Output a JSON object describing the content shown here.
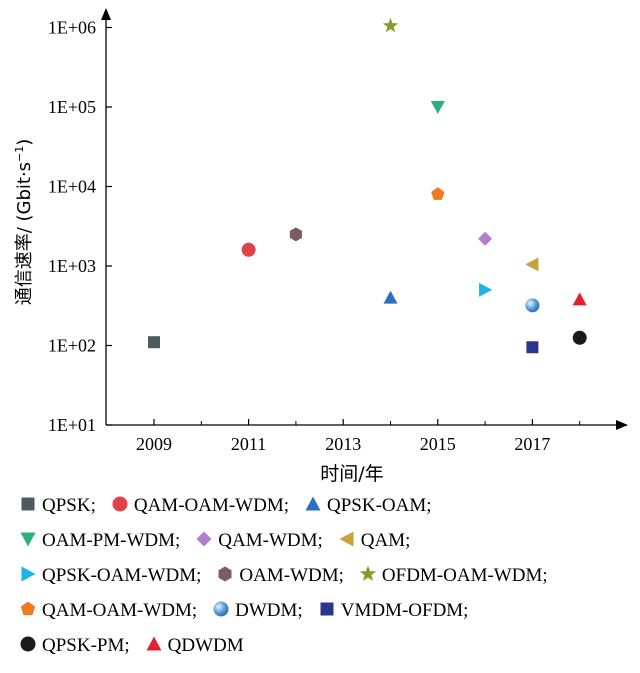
{
  "chart_data": {
    "type": "scatter",
    "xlabel": "时间/年",
    "ylabel": "通信速率/ (Gbit·s",
    "ylabel_sup": "−1",
    "ylabel_close": ")",
    "y_scale": "log",
    "xlim": [
      2008.0,
      2019.0
    ],
    "ylim": [
      10,
      1000000
    ],
    "x_ticks": [
      2009,
      2011,
      2013,
      2015,
      2017
    ],
    "x_tick_labels": [
      "2009",
      "2011",
      "2013",
      "2015",
      "2017"
    ],
    "y_ticks": [
      10,
      100,
      1000,
      10000,
      100000,
      1000000
    ],
    "y_tick_labels": [
      "1E+01",
      "1E+02",
      "1E+03",
      "1E+04",
      "1E+05",
      "1E+06"
    ],
    "grid": false,
    "legend_position": "bottom",
    "series": [
      {
        "name": "QPSK;",
        "marker": "square",
        "color": "#4d5a5f",
        "x": 2009,
        "y": 110
      },
      {
        "name": "QAM-OAM-WDM;",
        "marker": "circle",
        "color": "#e2404b",
        "x": 2011,
        "y": 1600
      },
      {
        "name": "QPSK-OAM;",
        "marker": "triangle-up",
        "color": "#2f6ec4",
        "x": 2014,
        "y": 400
      },
      {
        "name": "OAM-PM-WDM;",
        "marker": "triangle-down",
        "color": "#2bb07d",
        "x": 2015,
        "y": 100000
      },
      {
        "name": "QAM-WDM;",
        "marker": "diamond",
        "color": "#b07fc9",
        "x": 2016,
        "y": 2200
      },
      {
        "name": "QAM;",
        "marker": "triangle-left",
        "color": "#c8a23a",
        "x": 2017,
        "y": 1050
      },
      {
        "name": "QPSK-OAM-WDM;",
        "marker": "triangle-right",
        "color": "#1ab4e6",
        "x": 2016,
        "y": 500
      },
      {
        "name": "OAM-WDM;",
        "marker": "hexagon",
        "color": "#7a5e5e",
        "x": 2012,
        "y": 2500
      },
      {
        "name": "OFDM-OAM-WDM;",
        "marker": "star",
        "color": "#8a9a2c",
        "x": 2014,
        "y": 1050000
      },
      {
        "name": "QAM-OAM-WDM;",
        "marker": "pentagon",
        "color": "#ee7a22",
        "x": 2015,
        "y": 8000
      },
      {
        "name": "DWDM;",
        "marker": "sphere",
        "color": "#5aa0d8",
        "x": 2017,
        "y": 320
      },
      {
        "name": "VMDM-OFDM;",
        "marker": "square",
        "color": "#2a3590",
        "x": 2017,
        "y": 95
      },
      {
        "name": "QPSK-PM;",
        "marker": "circle",
        "color": "#1a1a1a",
        "x": 2018,
        "y": 125
      },
      {
        "name": "QDWDM",
        "marker": "triangle-up",
        "color": "#e0222f",
        "x": 2018,
        "y": 380
      }
    ],
    "legend_rows": [
      [
        0,
        1,
        2
      ],
      [
        3,
        4,
        5
      ],
      [
        6,
        7,
        8
      ],
      [
        9,
        10,
        11
      ],
      [
        12,
        13
      ]
    ]
  }
}
